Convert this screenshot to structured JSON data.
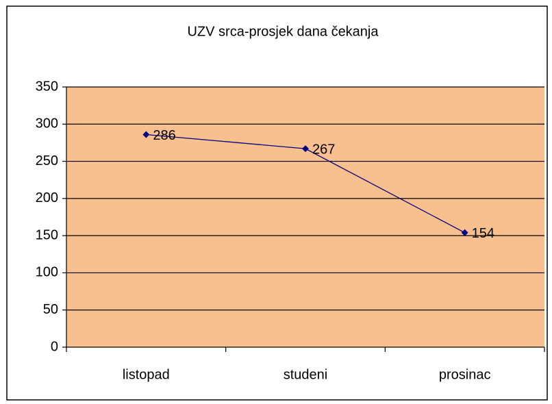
{
  "chart_data": {
    "type": "line",
    "title": "UZV srca-prosjek dana čekanja",
    "categories": [
      "listopad",
      "studeni",
      "prosinac"
    ],
    "values": [
      286,
      267,
      154
    ],
    "color": "#000080",
    "plot_background": "#f9c08f",
    "ylim": [
      0,
      350
    ],
    "yticks": [
      0,
      50,
      100,
      150,
      200,
      250,
      300,
      350
    ],
    "grid": true
  }
}
